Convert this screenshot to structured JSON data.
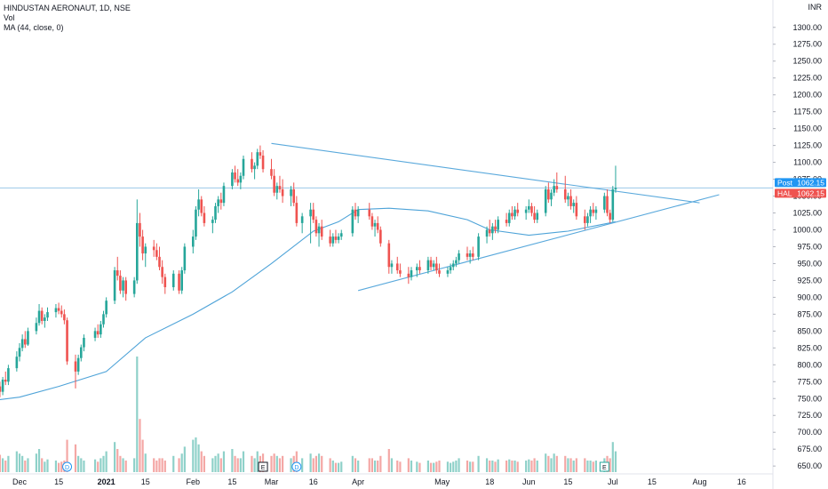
{
  "legend": {
    "title": "HINDUSTAN AERONAUT, 1D, NSE",
    "vol": "Vol",
    "ma": "MA (44, close, 0)"
  },
  "currency": "INR",
  "colors": {
    "up": "#26a69a",
    "down": "#ef5350",
    "up_vol": "#8fd1c9",
    "down_vol": "#f4a7a5",
    "ma": "#4ea3d8",
    "trendline": "#5aa9dc",
    "last_price_line": "#9cc8e8",
    "post_tag": "#2196f3",
    "hal_tag": "#ef5350",
    "axis_text": "#131722"
  },
  "tags": [
    {
      "name": "Post",
      "value": "1062.15"
    },
    {
      "name": "HAL",
      "value": "1062.15"
    }
  ],
  "events": [
    {
      "label": "D",
      "kind": "dividend",
      "date": "Dec 18"
    },
    {
      "label": "E",
      "kind": "earnings",
      "date": "Feb 26"
    },
    {
      "label": "D",
      "kind": "dividend",
      "date": "Mar 10"
    },
    {
      "label": "E",
      "kind": "earnings",
      "date": "Jun 28"
    }
  ],
  "chart_data": {
    "type": "candlestick",
    "instrument": "HINDUSTAN AERONAUT, 1D, NSE",
    "y_axis": {
      "ticks": [
        650,
        675,
        700,
        725,
        750,
        775,
        800,
        825,
        850,
        875,
        900,
        925,
        950,
        975,
        1000,
        1025,
        1050,
        1075,
        1100,
        1125,
        1150,
        1175,
        1200,
        1225,
        1250,
        1275,
        1300
      ],
      "tick_labels": [
        "650.00",
        "675.00",
        "700.00",
        "725.00",
        "750.00",
        "775.00",
        "800.00",
        "825.00",
        "850.00",
        "875.00",
        "900.00",
        "925.00",
        "950.00",
        "975.00",
        "1000.00",
        "1025.00",
        "1050.00",
        "1075.00",
        "1100.00",
        "1125.00",
        "1150.00",
        "1175.00",
        "1200.00",
        "1225.00",
        "1250.00",
        "1275.00",
        "1300.00"
      ],
      "range": [
        641,
        1330
      ]
    },
    "x_axis": {
      "tick_labels": [
        "Dec",
        "15",
        "2021",
        "15",
        "Feb",
        "15",
        "Mar",
        "16",
        "Apr",
        "May",
        "18",
        "Jun",
        "15",
        "Jul",
        "15",
        "Aug",
        "16"
      ],
      "tick_dates": [
        "Dec 1",
        "Dec 15",
        "Jan 1",
        "Jan 15",
        "Feb 1",
        "Feb 15",
        "Mar 1",
        "Mar 16",
        "Apr 1",
        "May 1",
        "May 18",
        "Jun 1",
        "Jun 15",
        "Jul 1",
        "Jul 15",
        "Aug 1",
        "Aug 16"
      ]
    },
    "last_price": 1062.15,
    "max_volume": 100,
    "trendlines": [
      {
        "name": "upper",
        "from": [
          "Mar 1",
          1128
        ],
        "to": [
          "Aug 1",
          1040
        ]
      },
      {
        "name": "lower",
        "from": [
          "Apr 1",
          910
        ],
        "to": [
          "Aug 8",
          1052
        ]
      }
    ],
    "candles": [
      [
        "Nov 23",
        780,
        785,
        765,
        768,
        22
      ],
      [
        "Nov 24",
        768,
        775,
        752,
        760,
        15
      ],
      [
        "Nov 25",
        760,
        782,
        755,
        778,
        12
      ],
      [
        "Nov 26",
        778,
        790,
        770,
        775,
        10
      ],
      [
        "Nov 27",
        775,
        800,
        770,
        795,
        14
      ],
      [
        "Nov 30",
        795,
        820,
        790,
        812,
        18
      ],
      [
        "Dec 1",
        812,
        832,
        805,
        825,
        16
      ],
      [
        "Dec 2",
        825,
        845,
        820,
        838,
        14
      ],
      [
        "Dec 3",
        838,
        850,
        825,
        830,
        10
      ],
      [
        "Dec 4",
        830,
        855,
        828,
        850,
        12
      ],
      [
        "Dec 7",
        850,
        870,
        845,
        862,
        16
      ],
      [
        "Dec 8",
        862,
        890,
        858,
        880,
        20
      ],
      [
        "Dec 9",
        880,
        885,
        860,
        865,
        12
      ],
      [
        "Dec 10",
        865,
        875,
        855,
        870,
        9
      ],
      [
        "Dec 11",
        870,
        885,
        865,
        878,
        11
      ],
      [
        "Dec 14",
        878,
        890,
        870,
        884,
        10
      ],
      [
        "Dec 15",
        884,
        892,
        875,
        880,
        8
      ],
      [
        "Dec 16",
        880,
        888,
        870,
        875,
        9
      ],
      [
        "Dec 17",
        875,
        882,
        860,
        866,
        10
      ],
      [
        "Dec 18",
        866,
        870,
        800,
        805,
        28
      ],
      [
        "Dec 21",
        805,
        815,
        765,
        790,
        24
      ],
      [
        "Dec 22",
        790,
        815,
        785,
        810,
        14
      ],
      [
        "Dec 23",
        810,
        830,
        805,
        826,
        12
      ],
      [
        "Dec 24",
        826,
        845,
        820,
        840,
        10
      ],
      [
        "Dec 28",
        840,
        855,
        835,
        850,
        11
      ],
      [
        "Dec 29",
        850,
        860,
        840,
        845,
        9
      ],
      [
        "Dec 30",
        845,
        865,
        840,
        860,
        12
      ],
      [
        "Dec 31",
        860,
        880,
        855,
        875,
        14
      ],
      [
        "Jan 1",
        875,
        900,
        870,
        895,
        18
      ],
      [
        "Jan 4",
        895,
        945,
        890,
        940,
        26
      ],
      [
        "Jan 5",
        940,
        960,
        925,
        932,
        20
      ],
      [
        "Jan 6",
        932,
        940,
        905,
        910,
        14
      ],
      [
        "Jan 7",
        910,
        930,
        900,
        925,
        12
      ],
      [
        "Jan 8",
        925,
        930,
        895,
        905,
        10
      ],
      [
        "Jan 11",
        905,
        930,
        900,
        925,
        12
      ],
      [
        "Jan 12",
        925,
        1045,
        920,
        1010,
        100
      ],
      [
        "Jan 13",
        1010,
        1025,
        975,
        990,
        46
      ],
      [
        "Jan 14",
        990,
        1000,
        955,
        965,
        28
      ],
      [
        "Jan 15",
        965,
        980,
        945,
        975,
        16
      ],
      [
        "Jan 18",
        975,
        985,
        960,
        970,
        12
      ],
      [
        "Jan 19",
        970,
        980,
        955,
        960,
        10
      ],
      [
        "Jan 20",
        960,
        975,
        940,
        945,
        12
      ],
      [
        "Jan 21",
        945,
        955,
        920,
        930,
        12
      ],
      [
        "Jan 22",
        930,
        935,
        905,
        915,
        10
      ],
      [
        "Jan 25",
        915,
        940,
        910,
        935,
        14
      ],
      [
        "Jan 27",
        935,
        940,
        905,
        910,
        12
      ],
      [
        "Jan 28",
        910,
        945,
        905,
        940,
        16
      ],
      [
        "Jan 29",
        940,
        980,
        935,
        975,
        22
      ],
      [
        "Feb 1",
        975,
        1000,
        965,
        990,
        28
      ],
      [
        "Feb 2",
        990,
        1035,
        985,
        1030,
        30
      ],
      [
        "Feb 3",
        1030,
        1060,
        1020,
        1045,
        24
      ],
      [
        "Feb 4",
        1045,
        1050,
        1020,
        1025,
        18
      ],
      [
        "Feb 5",
        1025,
        1035,
        1005,
        1010,
        14
      ],
      [
        "Feb 8",
        1010,
        1020,
        995,
        1015,
        12
      ],
      [
        "Feb 9",
        1015,
        1040,
        1010,
        1035,
        14
      ],
      [
        "Feb 10",
        1035,
        1050,
        1025,
        1045,
        16
      ],
      [
        "Feb 11",
        1045,
        1055,
        1030,
        1040,
        12
      ],
      [
        "Feb 12",
        1040,
        1070,
        1035,
        1065,
        18
      ],
      [
        "Feb 15",
        1065,
        1090,
        1060,
        1085,
        20
      ],
      [
        "Feb 16",
        1085,
        1095,
        1070,
        1075,
        14
      ],
      [
        "Feb 17",
        1075,
        1090,
        1065,
        1070,
        12
      ],
      [
        "Feb 18",
        1070,
        1085,
        1060,
        1080,
        12
      ],
      [
        "Feb 19",
        1080,
        1110,
        1075,
        1105,
        18
      ],
      [
        "Feb 22",
        1105,
        1115,
        1085,
        1090,
        14
      ],
      [
        "Feb 23",
        1090,
        1100,
        1075,
        1095,
        12
      ],
      [
        "Feb 24",
        1095,
        1120,
        1090,
        1115,
        18
      ],
      [
        "Feb 25",
        1115,
        1125,
        1105,
        1110,
        14
      ],
      [
        "Feb 26",
        1110,
        1118,
        1085,
        1090,
        16
      ],
      [
        "Mar 1",
        1090,
        1105,
        1075,
        1080,
        14
      ],
      [
        "Mar 2",
        1080,
        1090,
        1050,
        1055,
        16
      ],
      [
        "Mar 3",
        1055,
        1070,
        1045,
        1065,
        14
      ],
      [
        "Mar 4",
        1065,
        1080,
        1055,
        1060,
        12
      ],
      [
        "Mar 5",
        1060,
        1075,
        1040,
        1050,
        14
      ],
      [
        "Mar 8",
        1050,
        1065,
        1035,
        1060,
        12
      ],
      [
        "Mar 9",
        1060,
        1070,
        1035,
        1040,
        14
      ],
      [
        "Mar 10",
        1040,
        1050,
        1005,
        1010,
        18
      ],
      [
        "Mar 12",
        1010,
        1025,
        995,
        1020,
        12
      ],
      [
        "Mar 15",
        1020,
        1040,
        980,
        1030,
        16
      ],
      [
        "Mar 16",
        1030,
        1040,
        1010,
        1015,
        12
      ],
      [
        "Mar 17",
        1015,
        1020,
        990,
        995,
        14
      ],
      [
        "Mar 18",
        995,
        1010,
        975,
        1005,
        16
      ],
      [
        "Mar 19",
        1005,
        1015,
        985,
        990,
        14
      ],
      [
        "Mar 22",
        990,
        1000,
        975,
        980,
        12
      ],
      [
        "Mar 23",
        980,
        995,
        975,
        990,
        10
      ],
      [
        "Mar 24",
        990,
        1000,
        980,
        985,
        8
      ],
      [
        "Mar 25",
        985,
        995,
        980,
        990,
        8
      ],
      [
        "Mar 26",
        990,
        1000,
        985,
        995,
        9
      ],
      [
        "Mar 30",
        995,
        1035,
        990,
        1030,
        14
      ],
      [
        "Mar 31",
        1030,
        1040,
        1015,
        1020,
        12
      ],
      [
        "Apr 1",
        1020,
        1035,
        1010,
        1030,
        10
      ],
      [
        "Apr 5",
        1030,
        1040,
        1015,
        1020,
        12
      ],
      [
        "Apr 6",
        1020,
        1025,
        1000,
        1005,
        12
      ],
      [
        "Apr 7",
        1005,
        1015,
        990,
        1010,
        10
      ],
      [
        "Apr 8",
        1010,
        1020,
        995,
        1000,
        10
      ],
      [
        "Apr 9",
        1000,
        1005,
        975,
        980,
        14
      ],
      [
        "Apr 12",
        980,
        985,
        935,
        945,
        20
      ],
      [
        "Apr 13",
        945,
        955,
        935,
        950,
        12
      ],
      [
        "Apr 15",
        950,
        960,
        935,
        940,
        10
      ],
      [
        "Apr 16",
        940,
        950,
        930,
        935,
        9
      ],
      [
        "Apr 19",
        935,
        945,
        920,
        930,
        12
      ],
      [
        "Apr 20",
        930,
        945,
        925,
        940,
        10
      ],
      [
        "Apr 22",
        940,
        950,
        930,
        945,
        9
      ],
      [
        "Apr 23",
        945,
        955,
        935,
        940,
        8
      ],
      [
        "Apr 26",
        940,
        960,
        935,
        955,
        10
      ],
      [
        "Apr 27",
        955,
        960,
        940,
        945,
        8
      ],
      [
        "Apr 28",
        945,
        955,
        940,
        950,
        8
      ],
      [
        "Apr 29",
        950,
        960,
        935,
        940,
        9
      ],
      [
        "Apr 30",
        940,
        950,
        930,
        935,
        10
      ],
      [
        "May 3",
        935,
        945,
        930,
        940,
        9
      ],
      [
        "May 4",
        940,
        950,
        935,
        945,
        8
      ],
      [
        "May 5",
        945,
        955,
        940,
        950,
        9
      ],
      [
        "May 6",
        950,
        960,
        945,
        955,
        10
      ],
      [
        "May 7",
        955,
        970,
        950,
        965,
        12
      ],
      [
        "May 10",
        965,
        975,
        955,
        960,
        10
      ],
      [
        "May 11",
        960,
        970,
        950,
        965,
        9
      ],
      [
        "May 12",
        965,
        975,
        955,
        960,
        9
      ],
      [
        "May 14",
        960,
        995,
        955,
        990,
        14
      ],
      [
        "May 17",
        990,
        1005,
        980,
        1000,
        12
      ],
      [
        "May 18",
        1000,
        1015,
        990,
        995,
        10
      ],
      [
        "May 19",
        995,
        1010,
        985,
        1005,
        10
      ],
      [
        "May 20",
        1005,
        1015,
        995,
        1000,
        9
      ],
      [
        "May 21",
        1000,
        1020,
        995,
        1015,
        11
      ],
      [
        "May 24",
        1015,
        1025,
        1005,
        1010,
        10
      ],
      [
        "May 25",
        1010,
        1030,
        1005,
        1025,
        11
      ],
      [
        "May 26",
        1025,
        1035,
        1015,
        1020,
        10
      ],
      [
        "May 27",
        1020,
        1035,
        1015,
        1030,
        10
      ],
      [
        "May 28",
        1030,
        1040,
        1020,
        1025,
        9
      ],
      [
        "May 31",
        1025,
        1035,
        1015,
        1030,
        10
      ],
      [
        "Jun 1",
        1030,
        1045,
        1025,
        1035,
        11
      ],
      [
        "Jun 2",
        1035,
        1040,
        1020,
        1025,
        10
      ],
      [
        "Jun 3",
        1025,
        1035,
        1010,
        1015,
        12
      ],
      [
        "Jun 4",
        1015,
        1030,
        1010,
        1025,
        10
      ],
      [
        "Jun 7",
        1025,
        1065,
        1020,
        1060,
        16
      ],
      [
        "Jun 8",
        1060,
        1070,
        1040,
        1045,
        14
      ],
      [
        "Jun 9",
        1045,
        1060,
        1035,
        1055,
        12
      ],
      [
        "Jun 10",
        1055,
        1075,
        1050,
        1065,
        16
      ],
      [
        "Jun 11",
        1065,
        1085,
        1055,
        1060,
        14
      ],
      [
        "Jun 14",
        1060,
        1080,
        1040,
        1045,
        14
      ],
      [
        "Jun 15",
        1045,
        1055,
        1035,
        1050,
        12
      ],
      [
        "Jun 16",
        1050,
        1060,
        1030,
        1035,
        12
      ],
      [
        "Jun 17",
        1035,
        1045,
        1025,
        1040,
        10
      ],
      [
        "Jun 18",
        1040,
        1050,
        1015,
        1020,
        12
      ],
      [
        "Jun 21",
        1020,
        1030,
        1000,
        1010,
        12
      ],
      [
        "Jun 22",
        1010,
        1025,
        1005,
        1020,
        10
      ],
      [
        "Jun 23",
        1020,
        1035,
        1010,
        1030,
        10
      ],
      [
        "Jun 24",
        1030,
        1040,
        1020,
        1025,
        9
      ],
      [
        "Jun 25",
        1025,
        1035,
        1015,
        1030,
        10
      ],
      [
        "Jun 28",
        1030,
        1055,
        1025,
        1050,
        12
      ],
      [
        "Jun 29",
        1050,
        1060,
        1020,
        1025,
        14
      ],
      [
        "Jun 30",
        1025,
        1030,
        1010,
        1015,
        12
      ],
      [
        "Jul 1",
        1015,
        1065,
        1012,
        1060,
        26
      ],
      [
        "Jul 2",
        1060,
        1095,
        1055,
        1062.15,
        18
      ]
    ],
    "ma_series": [
      [
        "Nov 23",
        748
      ],
      [
        "Dec 1",
        752
      ],
      [
        "Dec 15",
        768
      ],
      [
        "Jan 1",
        790
      ],
      [
        "Jan 15",
        840
      ],
      [
        "Feb 1",
        875
      ],
      [
        "Feb 15",
        908
      ],
      [
        "Mar 1",
        950
      ],
      [
        "Mar 16",
        998
      ],
      [
        "Mar 25",
        1012
      ],
      [
        "Apr 1",
        1030
      ],
      [
        "Apr 12",
        1032
      ],
      [
        "Apr 26",
        1028
      ],
      [
        "May 10",
        1015
      ],
      [
        "May 18",
        1000
      ],
      [
        "Jun 1",
        992
      ],
      [
        "Jun 15",
        998
      ],
      [
        "Jul 2",
        1012
      ]
    ]
  }
}
